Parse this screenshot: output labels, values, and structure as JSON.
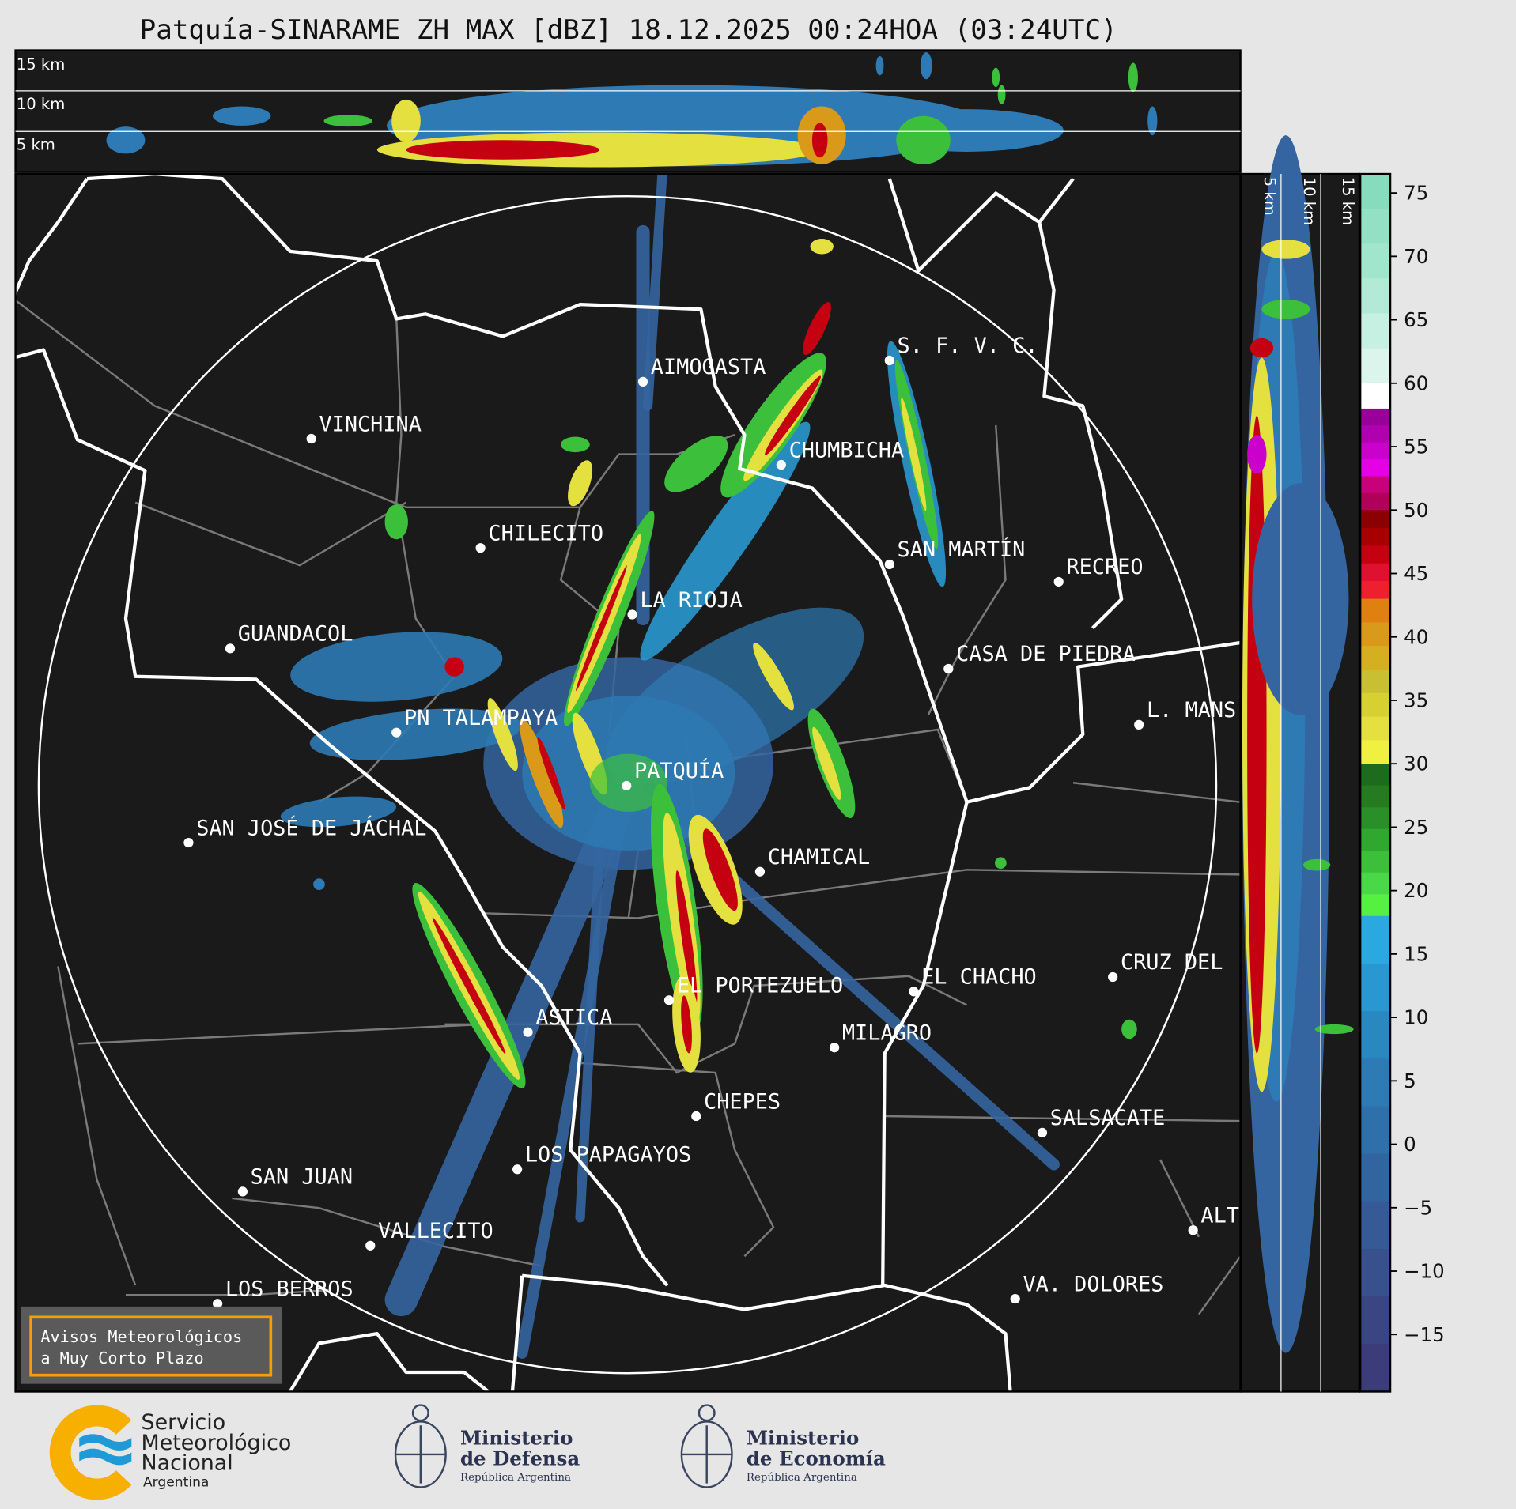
{
  "title": "Patquía-SINARAME ZH MAX [dBZ] 18.12.2025 00:24HOA (03:24UTC)",
  "top_section": {
    "labels": [
      "15 km",
      "10 km",
      "5 km"
    ]
  },
  "side_section": {
    "labels": [
      "5 km",
      "10 km",
      "15 km"
    ]
  },
  "colorbar": {
    "unit": "dBZ",
    "ticks": [
      "75",
      "70",
      "65",
      "60",
      "55",
      "50",
      "45",
      "40",
      "35",
      "30",
      "25",
      "20",
      "15",
      "10",
      "5",
      "0",
      "−5",
      "−10",
      "−15"
    ],
    "range": [
      -19.5,
      76.5
    ],
    "bands": [
      {
        "from": 60,
        "to": 76.5,
        "colors": [
          "#86dcbc",
          "#93e0c4",
          "#a2e5cd",
          "#b3ead7",
          "#c6f0e1",
          "#dcf5ec"
        ]
      },
      {
        "from": 58,
        "to": 60,
        "colors": [
          "#ffffff"
        ]
      },
      {
        "from": 50,
        "to": 58,
        "colors": [
          "#990099",
          "#b000b0",
          "#cc00cc",
          "#e600e6",
          "#c8007a",
          "#b00058"
        ]
      },
      {
        "from": 43,
        "to": 50,
        "colors": [
          "#8b0000",
          "#a80000",
          "#c50010",
          "#e01030",
          "#ee2030"
        ]
      },
      {
        "from": 30,
        "to": 43,
        "colors": [
          "#e08010",
          "#d89a18",
          "#d4b020",
          "#c8c030",
          "#d6d030",
          "#e4e040",
          "#f0f040"
        ]
      },
      {
        "from": 18,
        "to": 30,
        "colors": [
          "#1e6b1e",
          "#257a22",
          "#2a8f28",
          "#30a830",
          "#3cc03c",
          "#48d848",
          "#55f040"
        ]
      },
      {
        "from": -19.5,
        "to": 18,
        "colors": [
          "#2aa8e0",
          "#2a98d0",
          "#2a88c0",
          "#2d7ab4",
          "#3070aa",
          "#3265a0",
          "#355a96",
          "#38508c",
          "#3a4682",
          "#3c3c78"
        ]
      }
    ]
  },
  "cities": [
    {
      "name": "AIMOGASTA"
    },
    {
      "name": "VINCHINA"
    },
    {
      "name": "S. F. V. C."
    },
    {
      "name": "CHUMBICHA"
    },
    {
      "name": "CHILECITO"
    },
    {
      "name": "SAN MARTÍN"
    },
    {
      "name": "RECREO"
    },
    {
      "name": "LA RIOJA"
    },
    {
      "name": "GUANDACOL"
    },
    {
      "name": "CASA DE PIEDRA"
    },
    {
      "name": "L. MANS"
    },
    {
      "name": "PN TALAMPAYA"
    },
    {
      "name": "PATQUÍA"
    },
    {
      "name": "SAN JOSÉ DE JÁCHAL"
    },
    {
      "name": "CHAMICAL"
    },
    {
      "name": "EL CHACHO"
    },
    {
      "name": "CRUZ DEL"
    },
    {
      "name": "EL PORTEZUELO"
    },
    {
      "name": "ASTICA"
    },
    {
      "name": "MILAGRO"
    },
    {
      "name": "CHEPES"
    },
    {
      "name": "SALSACATE"
    },
    {
      "name": "LOS PAPAGAYOS"
    },
    {
      "name": "SAN JUAN"
    },
    {
      "name": "VALLECITO"
    },
    {
      "name": "ALT"
    },
    {
      "name": "LOS BERROS"
    },
    {
      "name": "VA. DOLORES"
    }
  ],
  "warning_box": {
    "line1": "Avisos Meteorológicos",
    "line2": "a Muy Corto Plazo",
    "border_color": "#f5a000"
  },
  "logos": {
    "smn": {
      "line1": "Servicio",
      "line2": "Meteorológico",
      "line3": "Nacional",
      "line4": "Argentina"
    },
    "defensa": {
      "line1": "Ministerio",
      "line2": "de Defensa",
      "line3": "República Argentina"
    },
    "economia": {
      "line1": "Ministerio",
      "line2": "de Economía",
      "line3": "República Argentina"
    }
  }
}
